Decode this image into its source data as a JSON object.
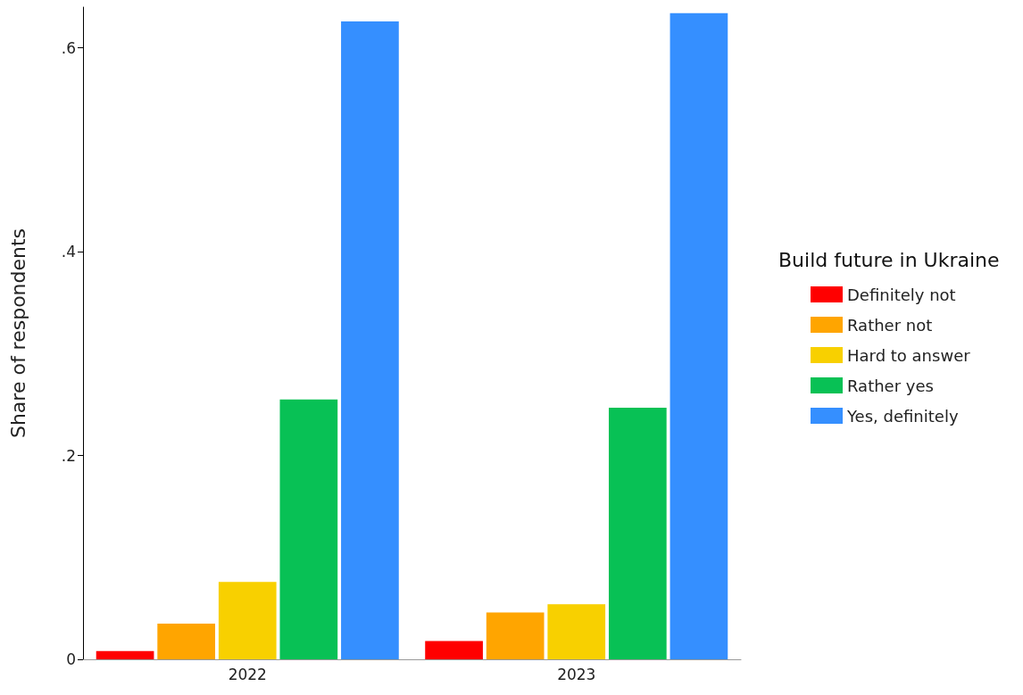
{
  "chart_data": {
    "type": "bar",
    "ylabel": "Share of respondents",
    "legend_title": "Build future in Ukraine",
    "categories": [
      "2022",
      "2023"
    ],
    "series": [
      {
        "name": "Definitely not",
        "color": "#ff0000",
        "values": [
          0.008,
          0.018
        ]
      },
      {
        "name": "Rather not",
        "color": "#ffa500",
        "values": [
          0.035,
          0.046
        ]
      },
      {
        "name": "Hard to answer",
        "color": "#f8d000",
        "values": [
          0.076,
          0.054
        ]
      },
      {
        "name": "Rather yes",
        "color": "#08c155",
        "values": [
          0.255,
          0.247
        ]
      },
      {
        "name": "Yes, definitely",
        "color": "#358fff",
        "values": [
          0.626,
          0.634
        ]
      }
    ],
    "ylim": [
      0,
      0.64
    ],
    "yticks": [
      0,
      {
        "value": 0.2,
        "label": ".2"
      },
      {
        "value": 0.4,
        "label": ".4"
      },
      {
        "value": 0.6,
        "label": ".6"
      }
    ],
    "grid": false,
    "legend": "right"
  }
}
